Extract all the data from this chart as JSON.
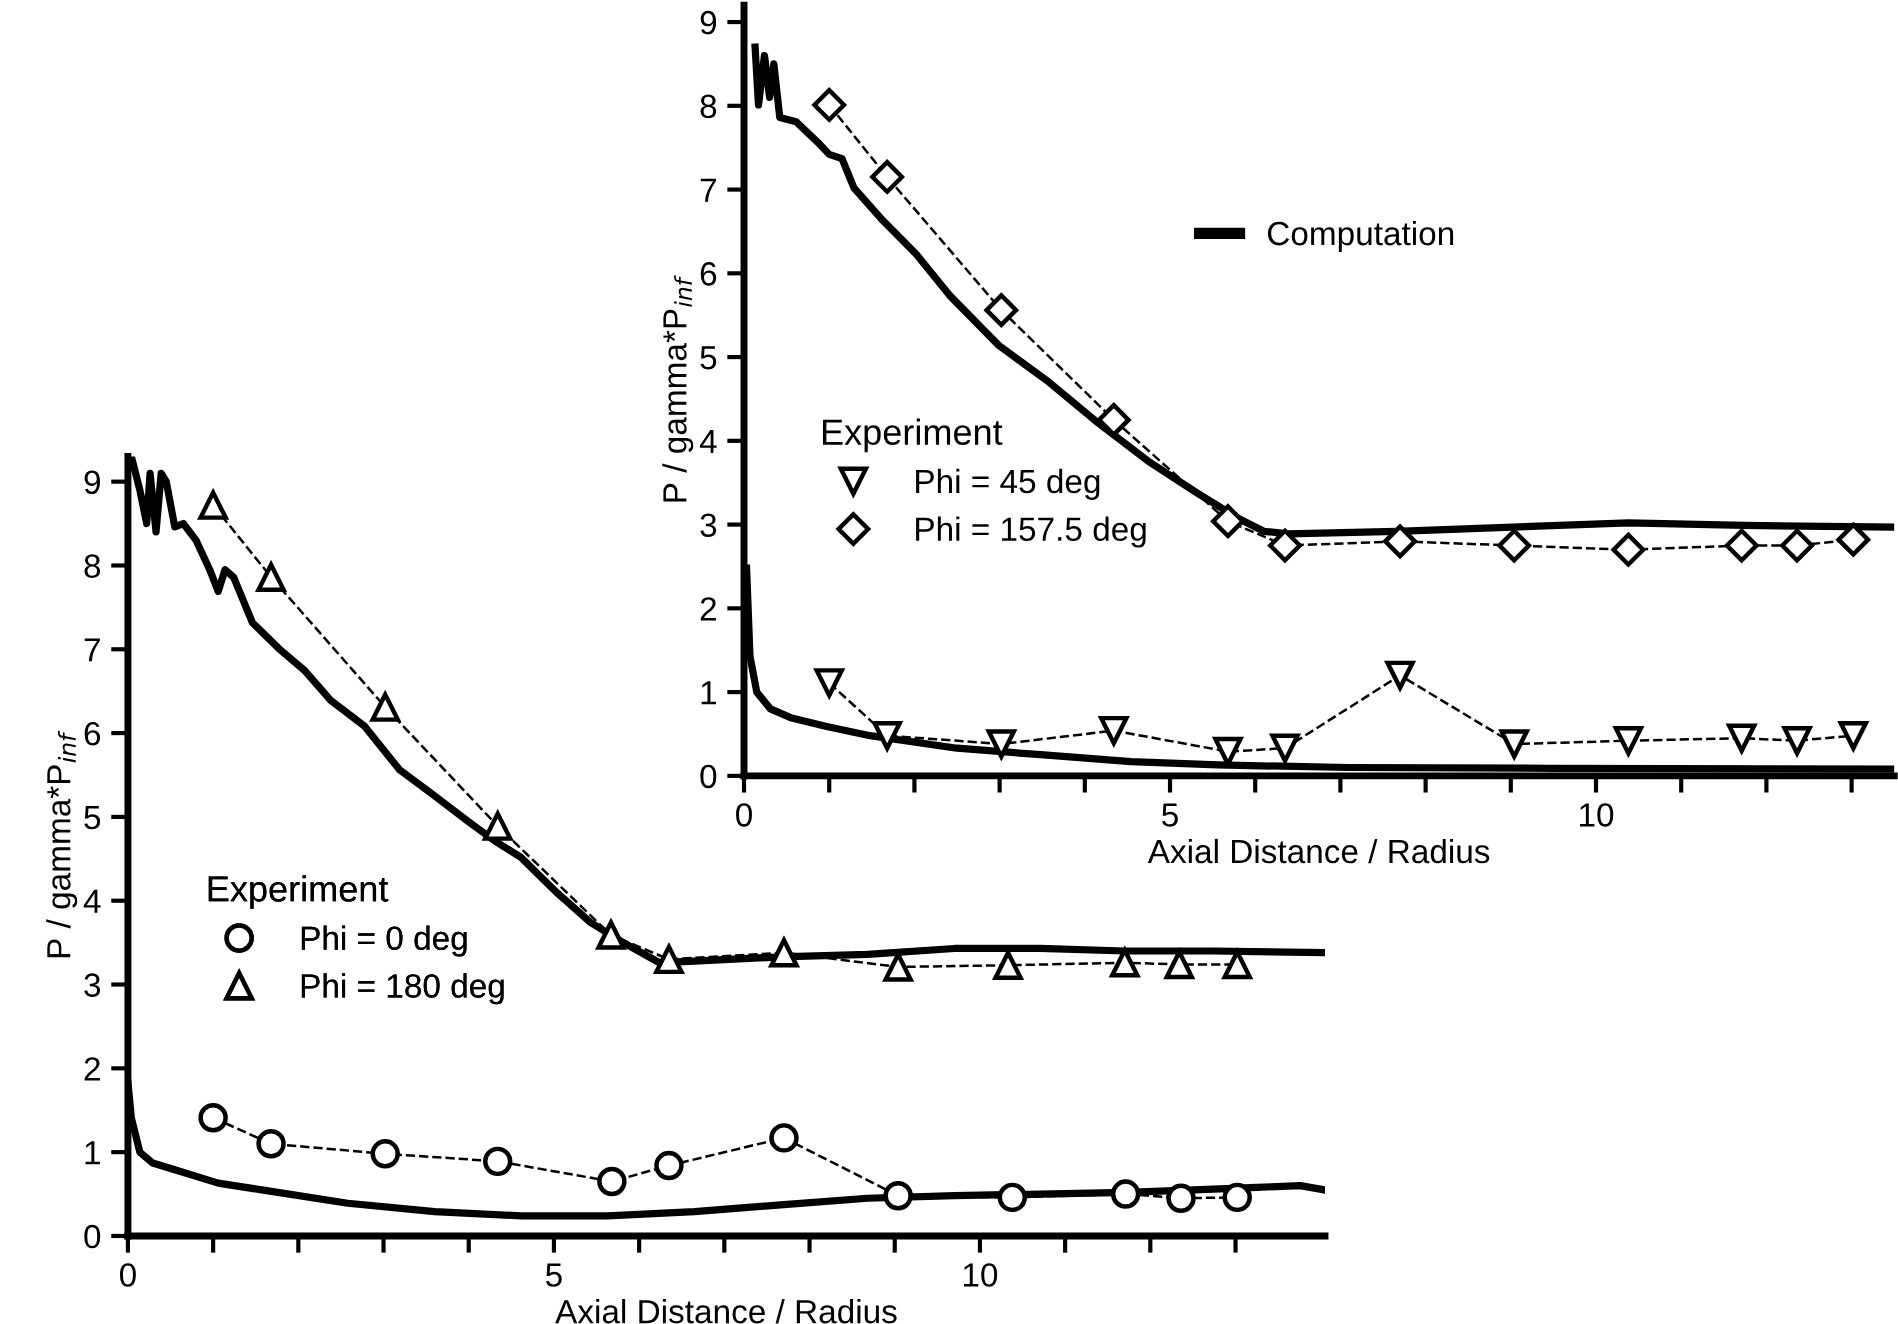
{
  "chart_data": [
    {
      "type": "line",
      "xlabel": "Axial Distance / Radius",
      "ylabel": "P / gamma*P$_{inf}$",
      "legend_title": "Experiment",
      "legend": "left",
      "grid": false,
      "xlim": [
        0,
        13.5
      ],
      "ylim": [
        0,
        9.2
      ],
      "xticks": [
        0,
        {
          "value": 1,
          "label": null
        },
        {
          "value": 2,
          "label": null
        },
        {
          "value": 3,
          "label": null
        },
        {
          "value": 4,
          "label": null
        },
        5,
        {
          "value": 6,
          "label": null
        },
        {
          "value": 7,
          "label": null
        },
        {
          "value": 8,
          "label": null
        },
        {
          "value": 9,
          "label": null
        },
        10,
        {
          "value": 11,
          "label": null
        },
        {
          "value": 12,
          "label": null
        },
        {
          "value": 13,
          "label": null
        }
      ],
      "yticks": [
        0,
        1,
        2,
        3,
        4,
        5,
        6,
        7,
        8,
        9
      ],
      "series": [
        {
          "name": "Computation",
          "color": "#000000",
          "marker": "none",
          "line_style": "solid",
          "x": [
            0.13,
            0.17,
            0.24,
            0.3,
            0.35,
            0.42,
            0.61,
            0.86,
            1.0,
            1.15,
            1.29,
            1.63,
            2.02,
            2.41,
            2.99,
            3.58,
            4.16,
            4.74,
            5.33,
            5.81,
            6.1,
            6.39,
            7.66,
            9.02,
            10.38,
            11.74,
            13.5
          ],
          "values": [
            8.7,
            8.01,
            8.6,
            8.1,
            8.5,
            7.86,
            7.81,
            7.57,
            7.42,
            7.37,
            7.02,
            6.63,
            6.23,
            5.74,
            5.14,
            4.7,
            4.21,
            3.76,
            3.37,
            3.07,
            2.92,
            2.89,
            2.92,
            2.97,
            3.02,
            2.99,
            2.97
          ]
        },
        {
          "color": "#000000",
          "marker": "none",
          "line_style": "solid",
          "x": [
            0.03,
            0.07,
            0.15,
            0.31,
            0.56,
            0.97,
            1.48,
            2.5,
            3.52,
            4.54,
            5.56,
            7.09,
            9.5,
            13.5
          ],
          "values": [
            2.48,
            1.43,
            1.0,
            0.8,
            0.69,
            0.59,
            0.48,
            0.33,
            0.25,
            0.17,
            0.13,
            0.1,
            0.09,
            0.08
          ]
        },
        {
          "name": "Phi = 45 deg",
          "color": "#000000",
          "marker": "triangle_down",
          "line_style": "dashed",
          "x": [
            1.0,
            1.68,
            3.02,
            4.34,
            5.68,
            6.35,
            7.7,
            9.04,
            10.38,
            11.71,
            12.36,
            13.02
          ],
          "values": [
            1.11,
            0.48,
            0.38,
            0.54,
            0.29,
            0.33,
            1.2,
            0.38,
            0.42,
            0.45,
            0.42,
            0.48
          ]
        },
        {
          "name": "Phi = 157.5 deg",
          "color": "#000000",
          "marker": "diamond",
          "line_style": "dashed",
          "x": [
            1.0,
            1.68,
            3.02,
            4.34,
            5.68,
            6.35,
            7.7,
            9.04,
            10.38,
            11.71,
            12.36,
            13.02
          ],
          "values": [
            8.01,
            7.15,
            5.56,
            4.25,
            3.04,
            2.75,
            2.8,
            2.75,
            2.7,
            2.75,
            2.75,
            2.82
          ]
        }
      ]
    },
    {
      "type": "line",
      "xlabel": "Axial Distance / Radius",
      "ylabel": "P / gamma*P$_{inf}$",
      "legend_title": "Experiment",
      "legend": "left",
      "grid": false,
      "xlim": [
        0,
        14.05
      ],
      "ylim": [
        0,
        9.3
      ],
      "xticks": [
        0,
        {
          "value": 1,
          "label": null
        },
        {
          "value": 2,
          "label": null
        },
        {
          "value": 3,
          "label": null
        },
        {
          "value": 4,
          "label": null
        },
        5,
        {
          "value": 6,
          "label": null
        },
        {
          "value": 7,
          "label": null
        },
        {
          "value": 8,
          "label": null
        },
        {
          "value": 9,
          "label": null
        },
        10,
        {
          "value": 11,
          "label": null
        },
        {
          "value": 12,
          "label": null
        },
        {
          "value": 13,
          "label": null
        }
      ],
      "yticks": [
        0,
        1,
        2,
        3,
        4,
        5,
        6,
        7,
        8,
        9
      ],
      "series": [
        {
          "color": "#000000",
          "marker": "none",
          "line_style": "solid",
          "x": [
            0.04,
            0.14,
            0.22,
            0.26,
            0.33,
            0.39,
            0.45,
            0.55,
            0.65,
            0.8,
            0.96,
            1.06,
            1.14,
            1.24,
            1.46,
            1.77,
            2.07,
            2.38,
            2.78,
            3.19,
            3.6,
            4.0,
            4.31,
            4.61,
            5.02,
            5.43,
            5.83,
            6.24,
            6.65,
            7.66,
            8.68,
            9.7,
            10.7,
            11.7,
            12.74,
            14.04
          ],
          "values": [
            9.3,
            8.9,
            8.5,
            9.1,
            8.4,
            9.1,
            9.0,
            8.46,
            8.5,
            8.3,
            7.95,
            7.69,
            7.95,
            7.86,
            7.32,
            7.01,
            6.75,
            6.39,
            6.08,
            5.56,
            5.25,
            4.94,
            4.71,
            4.52,
            4.11,
            3.74,
            3.49,
            3.26,
            3.28,
            3.33,
            3.36,
            3.43,
            3.43,
            3.4,
            3.4,
            3.38
          ]
        },
        {
          "color": "#000000",
          "marker": "none",
          "line_style": "solid",
          "x": [
            0,
            0.04,
            0.14,
            0.29,
            0.55,
            1.06,
            1.57,
            2.58,
            3.6,
            4.61,
            5.63,
            6.65,
            7.66,
            8.68,
            9.7,
            10.71,
            11.73,
            12.74,
            13.25,
            13.76,
            14.04
          ],
          "values": [
            1.83,
            1.41,
            1.0,
            0.87,
            0.79,
            0.63,
            0.55,
            0.39,
            0.29,
            0.24,
            0.24,
            0.29,
            0.37,
            0.45,
            0.48,
            0.5,
            0.52,
            0.56,
            0.58,
            0.6,
            0.55
          ]
        },
        {
          "name": "Phi = 0 deg",
          "color": "#000000",
          "marker": "circle",
          "line_style": "dashed",
          "x": [
            1.0,
            1.68,
            3.02,
            4.34,
            5.68,
            6.35,
            7.7,
            9.04,
            10.38,
            11.71,
            12.36,
            13.02
          ],
          "values": [
            1.41,
            1.1,
            0.98,
            0.89,
            0.65,
            0.84,
            1.17,
            0.48,
            0.46,
            0.5,
            0.45,
            0.46
          ]
        },
        {
          "name": "Phi = 180 deg",
          "color": "#000000",
          "marker": "triangle",
          "line_style": "dashed",
          "x": [
            1.0,
            1.68,
            3.02,
            4.34,
            5.67,
            6.35,
            7.7,
            9.04,
            10.33,
            11.7,
            12.34,
            13.02
          ],
          "values": [
            8.72,
            7.86,
            6.31,
            4.89,
            3.59,
            3.3,
            3.38,
            3.21,
            3.23,
            3.26,
            3.24,
            3.24
          ]
        }
      ]
    }
  ]
}
